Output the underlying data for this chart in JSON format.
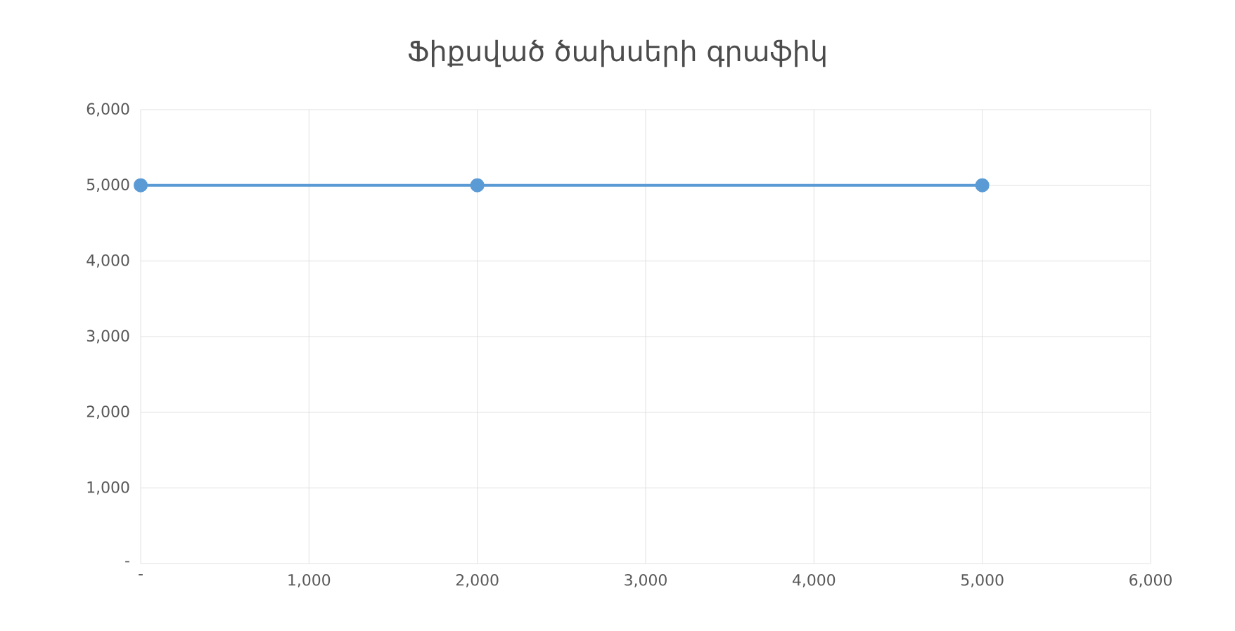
{
  "chart_data": {
    "type": "line",
    "title": "Ֆիքսված ծախսերի գրաֆիկ",
    "x": [
      0,
      2000,
      5000
    ],
    "series": [
      {
        "color": "#5b9bd5",
        "values": [
          5000,
          5000,
          5000
        ]
      }
    ],
    "xlim": [
      0,
      6000
    ],
    "xticks": [
      {
        "value": 0,
        "label": "-"
      },
      {
        "value": 1000,
        "label": "1,000"
      },
      {
        "value": 2000,
        "label": "2,000"
      },
      {
        "value": 3000,
        "label": "3,000"
      },
      {
        "value": 4000,
        "label": "4,000"
      },
      {
        "value": 5000,
        "label": "5,000"
      },
      {
        "value": 6000,
        "label": "6,000"
      }
    ],
    "ylim": [
      0,
      6000
    ],
    "yticks": [
      {
        "value": 0,
        "label": "-"
      },
      {
        "value": 1000,
        "label": "1,000"
      },
      {
        "value": 2000,
        "label": "2,000"
      },
      {
        "value": 3000,
        "label": "3,000"
      },
      {
        "value": 4000,
        "label": "4,000"
      },
      {
        "value": 5000,
        "label": "5,000"
      },
      {
        "value": 6000,
        "label": "6,000"
      }
    ],
    "grid": true,
    "marker": "circle",
    "line_style": "solid"
  }
}
